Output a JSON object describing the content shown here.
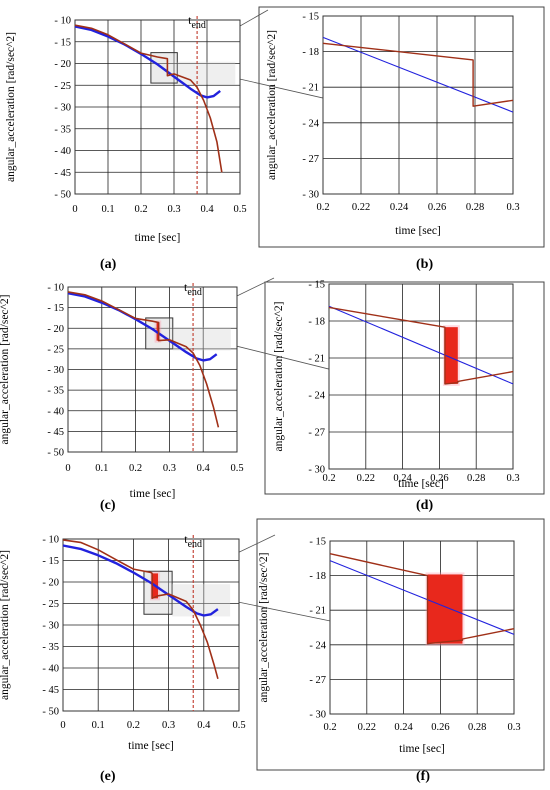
{
  "panels": [
    "(a)",
    "(b)",
    "(c)",
    "(d)",
    "(e)",
    "(f)"
  ],
  "tend_label": "t",
  "tend_sub": "end",
  "chart_data": [
    {
      "id": "a",
      "type": "line",
      "xlabel": "time [sec]",
      "ylabel": "angular_acceleration [rad/sec^2]",
      "xlim": [
        0,
        0.5
      ],
      "ylim": [
        -50,
        -10
      ],
      "xticks": [
        0,
        0.1,
        0.2,
        0.3,
        0.4,
        0.5
      ],
      "xtick_labels": [
        "0",
        "0.1",
        "0.2",
        "0.3",
        "0.4",
        "0.5"
      ],
      "yticks": [
        -10,
        -15,
        -20,
        -25,
        -30,
        -35,
        -40,
        -45,
        -50
      ],
      "ytick_labels": [
        "- 10",
        "- 15",
        "- 20",
        "- 25",
        "- 30",
        "- 35",
        "- 40",
        "- 45",
        "- 50"
      ],
      "grid": true,
      "t_end": 0.37,
      "zoom_box": {
        "x": [
          0.23,
          0.31
        ],
        "y": [
          -24.5,
          -17.5
        ]
      },
      "series": [
        {
          "color": "#2222dd",
          "x": [
            0,
            0.05,
            0.1,
            0.15,
            0.2,
            0.25,
            0.3,
            0.35,
            0.38,
            0.4,
            0.42,
            0.44
          ],
          "y": [
            -11.5,
            -12.3,
            -13.8,
            -15.6,
            -17.8,
            -20.2,
            -23.0,
            -25.8,
            -27.3,
            -27.8,
            -27.5,
            -26.3
          ]
        },
        {
          "color": "#a03018",
          "x": [
            0,
            0.05,
            0.1,
            0.15,
            0.2,
            0.25,
            0.28,
            0.28,
            0.3,
            0.35,
            0.37,
            0.39,
            0.41,
            0.43,
            0.445
          ],
          "y": [
            -11.2,
            -11.9,
            -13.4,
            -15.5,
            -17.6,
            -18.5,
            -18.9,
            -22.8,
            -22.4,
            -23.8,
            -25.5,
            -28.5,
            -32.5,
            -38.0,
            -45.0
          ]
        }
      ]
    },
    {
      "id": "b",
      "type": "line",
      "xlabel": "time [sec]",
      "ylabel": "angular_acceleration [rad/sec^2]",
      "xlim": [
        0.2,
        0.3
      ],
      "ylim": [
        -30,
        -15
      ],
      "xticks": [
        0.2,
        0.22,
        0.24,
        0.26,
        0.28,
        0.3
      ],
      "xtick_labels": [
        "0.2",
        "0.22",
        "0.24",
        "0.26",
        "0.28",
        "0.3"
      ],
      "yticks": [
        -15,
        -18,
        -21,
        -24,
        -27,
        -30
      ],
      "ytick_labels": [
        "- 15",
        "- 18",
        "- 21",
        "- 24",
        "- 27",
        "- 30"
      ],
      "grid": true,
      "series": [
        {
          "color": "#2222dd",
          "x": [
            0.2,
            0.3
          ],
          "y": [
            -16.8,
            -23.1
          ]
        },
        {
          "color": "#a03018",
          "x": [
            0.2,
            0.279,
            0.279,
            0.3
          ],
          "y": [
            -17.3,
            -18.7,
            -22.6,
            -22.1
          ]
        }
      ]
    },
    {
      "id": "c",
      "type": "line",
      "xlabel": "time [sec]",
      "ylabel": "angular_acceleration [rad/sec^2]",
      "xlim": [
        0,
        0.5
      ],
      "ylim": [
        -50,
        -10
      ],
      "xticks": [
        0,
        0.1,
        0.2,
        0.3,
        0.4,
        0.5
      ],
      "xtick_labels": [
        "0",
        "0.1",
        "0.2",
        "0.3",
        "0.4",
        "0.5"
      ],
      "yticks": [
        -10,
        -15,
        -20,
        -25,
        -30,
        -35,
        -40,
        -45,
        -50
      ],
      "ytick_labels": [
        "- 10",
        "- 15",
        "- 20",
        "- 25",
        "- 30",
        "- 35",
        "- 40",
        "- 45",
        "- 50"
      ],
      "grid": true,
      "t_end": 0.37,
      "zoom_box": {
        "x": [
          0.23,
          0.31
        ],
        "y": [
          -25,
          -17.5
        ]
      },
      "series": [
        {
          "color": "#2222dd",
          "x": [
            0,
            0.05,
            0.1,
            0.15,
            0.2,
            0.25,
            0.3,
            0.35,
            0.38,
            0.4,
            0.42,
            0.44
          ],
          "y": [
            -11.5,
            -12.3,
            -13.8,
            -15.6,
            -17.8,
            -20.2,
            -23.0,
            -25.8,
            -27.3,
            -27.8,
            -27.5,
            -26.3
          ]
        },
        {
          "color": "#a03018",
          "x": [
            0,
            0.05,
            0.1,
            0.15,
            0.2,
            0.25,
            0.268,
            0.268,
            0.3,
            0.35,
            0.37,
            0.39,
            0.41,
            0.43,
            0.445
          ],
          "y": [
            -11.2,
            -11.9,
            -13.4,
            -15.5,
            -17.6,
            -18.3,
            -18.6,
            -23.0,
            -22.8,
            -24.5,
            -26.0,
            -29.0,
            -33.5,
            -39.0,
            -44.0
          ]
        }
      ],
      "chatter_band": {
        "x": [
          0.262,
          0.27
        ],
        "y": [
          -23.0,
          -18.6
        ]
      }
    },
    {
      "id": "d",
      "type": "line",
      "xlabel": "time [sec]",
      "ylabel": "angular_acceleration [rad/sec^2]",
      "xlim": [
        0.2,
        0.3
      ],
      "ylim": [
        -30,
        -15
      ],
      "xticks": [
        0.2,
        0.22,
        0.24,
        0.26,
        0.28,
        0.3
      ],
      "xtick_labels": [
        "0.2",
        "0.22",
        "0.24",
        "0.26",
        "0.28",
        "0.3"
      ],
      "yticks": [
        -15,
        -18,
        -21,
        -24,
        -27,
        -30
      ],
      "ytick_labels": [
        "- 15",
        "- 18",
        "- 21",
        "- 24",
        "- 27",
        "- 30"
      ],
      "grid": true,
      "series": [
        {
          "color": "#2222dd",
          "x": [
            0.2,
            0.3
          ],
          "y": [
            -16.8,
            -23.1
          ]
        },
        {
          "color": "#a03018",
          "x": [
            0.2,
            0.263,
            0.263,
            0.27,
            0.27,
            0.3
          ],
          "y": [
            -16.9,
            -18.5,
            -23.1,
            -23.0,
            -22.9,
            -22.1
          ]
        }
      ],
      "chatter_band": {
        "x": [
          0.263,
          0.27
        ],
        "y": [
          -23.1,
          -18.5
        ]
      }
    },
    {
      "id": "e",
      "type": "line",
      "xlabel": "time [sec]",
      "ylabel": "angular_acceleration [rad/sec^2]",
      "xlim": [
        0,
        0.5
      ],
      "ylim": [
        -50,
        -10
      ],
      "xticks": [
        0,
        0.1,
        0.2,
        0.3,
        0.4,
        0.5
      ],
      "xtick_labels": [
        "0",
        "0.1",
        "0.2",
        "0.3",
        "0.4",
        "0.5"
      ],
      "yticks": [
        -10,
        -15,
        -20,
        -25,
        -30,
        -35,
        -40,
        -45,
        -50
      ],
      "ytick_labels": [
        "- 10",
        "- 15",
        "- 20",
        "- 25",
        "- 30",
        "- 35",
        "- 40",
        "- 45",
        "- 50"
      ],
      "grid": true,
      "t_end": 0.37,
      "zoom_box": {
        "x": [
          0.23,
          0.31
        ],
        "y": [
          -27.5,
          -17.5
        ]
      },
      "series": [
        {
          "color": "#2222dd",
          "x": [
            0,
            0.05,
            0.1,
            0.15,
            0.2,
            0.25,
            0.3,
            0.35,
            0.38,
            0.4,
            0.42,
            0.44
          ],
          "y": [
            -11.5,
            -12.3,
            -13.8,
            -15.6,
            -17.8,
            -20.2,
            -23.0,
            -25.8,
            -27.3,
            -27.8,
            -27.5,
            -26.3
          ]
        },
        {
          "color": "#a03018",
          "x": [
            0,
            0.05,
            0.1,
            0.15,
            0.2,
            0.25,
            0.253,
            0.253,
            0.27,
            0.3,
            0.35,
            0.37,
            0.39,
            0.41,
            0.43,
            0.44
          ],
          "y": [
            -10.2,
            -10.8,
            -12.5,
            -14.8,
            -17.0,
            -17.8,
            -18.0,
            -23.8,
            -23.2,
            -22.8,
            -24.5,
            -26.5,
            -30.0,
            -34.0,
            -39.5,
            -42.5
          ]
        }
      ],
      "chatter_band": {
        "x": [
          0.253,
          0.27
        ],
        "y": [
          -23.8,
          -18.0
        ]
      }
    },
    {
      "id": "f",
      "type": "line",
      "xlabel": "time [sec]",
      "ylabel": "angular_acceleration [rad/sec^2]",
      "xlim": [
        0.2,
        0.3
      ],
      "ylim": [
        -30,
        -15
      ],
      "xticks": [
        0.2,
        0.22,
        0.24,
        0.26,
        0.28,
        0.3
      ],
      "xtick_labels": [
        "0.2",
        "0.22",
        "0.24",
        "0.26",
        "0.28",
        "0.3"
      ],
      "yticks": [
        -15,
        -18,
        -21,
        -24,
        -27,
        -30
      ],
      "ytick_labels": [
        "- 15",
        "- 18",
        "- 21",
        "- 24",
        "- 27",
        "- 30"
      ],
      "grid": true,
      "series": [
        {
          "color": "#2222dd",
          "x": [
            0.2,
            0.3
          ],
          "y": [
            -16.7,
            -23.1
          ]
        },
        {
          "color": "#a03018",
          "x": [
            0.2,
            0.253,
            0.253,
            0.272,
            0.272,
            0.3
          ],
          "y": [
            -16.1,
            -18.0,
            -23.9,
            -23.6,
            -23.5,
            -22.6
          ]
        }
      ],
      "chatter_band": {
        "x": [
          0.253,
          0.272
        ],
        "y": [
          -23.9,
          -17.9
        ]
      }
    }
  ]
}
